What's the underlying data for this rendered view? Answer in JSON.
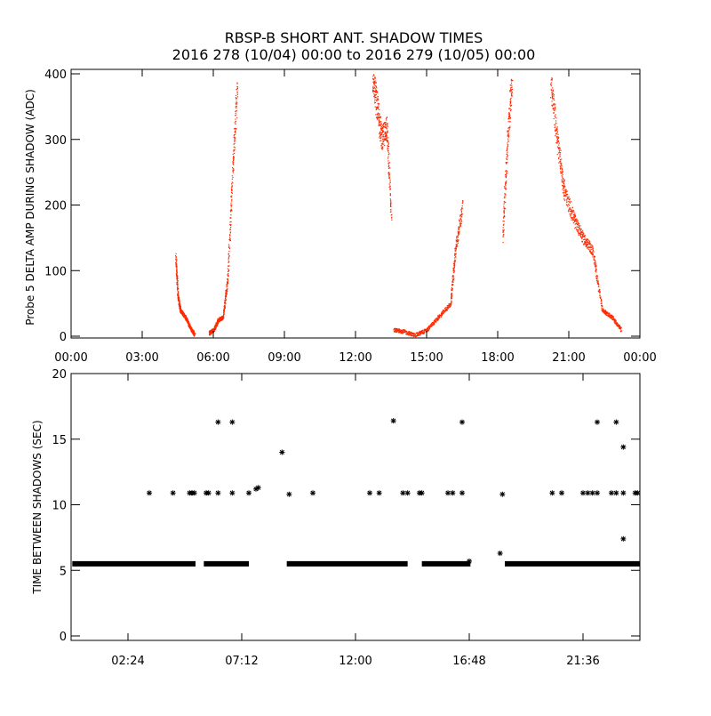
{
  "title_line1": "RBSP-B SHORT ANT. SHADOW TIMES",
  "title_line2": "2016 278 (10/04) 00:00 to 2016 279 (10/05) 00:00",
  "colors": {
    "top_points": "#ff2a00",
    "bottom_points": "#000000",
    "axes": "#000000"
  },
  "chart_data": [
    {
      "type": "scatter",
      "ylabel": "Probe 5 DELTA AMP DURING SHADOW (ADC)",
      "xlim_hours": [
        0,
        24
      ],
      "ylim": [
        0,
        400
      ],
      "x_ticks": [
        "00:00",
        "03:00",
        "06:00",
        "09:00",
        "12:00",
        "15:00",
        "18:00",
        "21:00",
        "00:00"
      ],
      "y_ticks": [
        "0",
        "100",
        "200",
        "300",
        "400"
      ],
      "series_segments_approx": [
        {
          "x": [
            4.4,
            4.5,
            4.6,
            4.8,
            5.0,
            5.2
          ],
          "y": [
            120,
            60,
            40,
            30,
            15,
            3
          ]
        },
        {
          "x": [
            5.8,
            6.0,
            6.2,
            6.4,
            6.6,
            6.8,
            7.0
          ],
          "y": [
            5,
            10,
            25,
            30,
            90,
            250,
            380
          ]
        },
        {
          "x": [
            12.7,
            12.9,
            13.1,
            13.3,
            13.5
          ],
          "y": [
            400,
            350,
            300,
            320,
            180
          ]
        },
        {
          "x": [
            13.6,
            14.0,
            14.5,
            15.0,
            15.5,
            16.0,
            16.2,
            16.5
          ],
          "y": [
            10,
            8,
            2,
            10,
            30,
            50,
            130,
            200
          ]
        },
        {
          "x": [
            18.2,
            18.4,
            18.6
          ],
          "y": [
            150,
            300,
            400
          ]
        },
        {
          "x": [
            20.2,
            20.5,
            20.8,
            21.2,
            21.6,
            22.0,
            22.4,
            22.8,
            23.2
          ],
          "y": [
            400,
            300,
            220,
            180,
            150,
            130,
            40,
            30,
            10
          ]
        }
      ]
    },
    {
      "type": "scatter",
      "ylabel": "TIME BETWEEN SHADOWS (SEC)",
      "xlim_hours": [
        0,
        24
      ],
      "ylim": [
        0,
        20
      ],
      "x_ticks": [
        "02:24",
        "07:12",
        "12:00",
        "16:48",
        "21:36"
      ],
      "y_ticks": [
        "0",
        "5",
        "10",
        "15",
        "20"
      ],
      "baseline_value": 5.5,
      "baseline_ranges_hours": [
        [
          0.05,
          5.25
        ],
        [
          5.6,
          7.5
        ],
        [
          9.1,
          14.2
        ],
        [
          14.8,
          16.85
        ],
        [
          18.3,
          24.0
        ]
      ],
      "points": [
        {
          "x": 3.3,
          "y": 10.9
        },
        {
          "x": 4.3,
          "y": 10.9
        },
        {
          "x": 5.0,
          "y": 10.9
        },
        {
          "x": 5.1,
          "y": 10.9
        },
        {
          "x": 5.2,
          "y": 10.9
        },
        {
          "x": 5.7,
          "y": 10.9
        },
        {
          "x": 5.8,
          "y": 10.9
        },
        {
          "x": 6.2,
          "y": 10.9
        },
        {
          "x": 6.8,
          "y": 10.9
        },
        {
          "x": 7.5,
          "y": 10.9
        },
        {
          "x": 7.8,
          "y": 11.2
        },
        {
          "x": 7.9,
          "y": 11.3
        },
        {
          "x": 9.2,
          "y": 10.8
        },
        {
          "x": 10.2,
          "y": 10.9
        },
        {
          "x": 12.6,
          "y": 10.9
        },
        {
          "x": 13.0,
          "y": 10.9
        },
        {
          "x": 14.0,
          "y": 10.9
        },
        {
          "x": 14.2,
          "y": 10.9
        },
        {
          "x": 14.7,
          "y": 10.9
        },
        {
          "x": 14.8,
          "y": 10.9
        },
        {
          "x": 15.9,
          "y": 10.9
        },
        {
          "x": 16.1,
          "y": 10.9
        },
        {
          "x": 16.5,
          "y": 10.9
        },
        {
          "x": 18.2,
          "y": 10.8
        },
        {
          "x": 20.3,
          "y": 10.9
        },
        {
          "x": 20.7,
          "y": 10.9
        },
        {
          "x": 21.6,
          "y": 10.9
        },
        {
          "x": 21.8,
          "y": 10.9
        },
        {
          "x": 22.0,
          "y": 10.9
        },
        {
          "x": 22.2,
          "y": 10.9
        },
        {
          "x": 22.8,
          "y": 10.9
        },
        {
          "x": 23.0,
          "y": 10.9
        },
        {
          "x": 23.3,
          "y": 10.9
        },
        {
          "x": 23.8,
          "y": 10.9
        },
        {
          "x": 23.9,
          "y": 10.9
        },
        {
          "x": 6.2,
          "y": 16.3
        },
        {
          "x": 6.8,
          "y": 16.3
        },
        {
          "x": 13.6,
          "y": 16.4
        },
        {
          "x": 16.5,
          "y": 16.3
        },
        {
          "x": 22.2,
          "y": 16.3
        },
        {
          "x": 23.0,
          "y": 16.3
        },
        {
          "x": 8.9,
          "y": 14.0
        },
        {
          "x": 23.3,
          "y": 14.4
        },
        {
          "x": 18.1,
          "y": 6.3
        },
        {
          "x": 23.3,
          "y": 7.4
        },
        {
          "x": 16.8,
          "y": 5.7
        }
      ]
    }
  ]
}
